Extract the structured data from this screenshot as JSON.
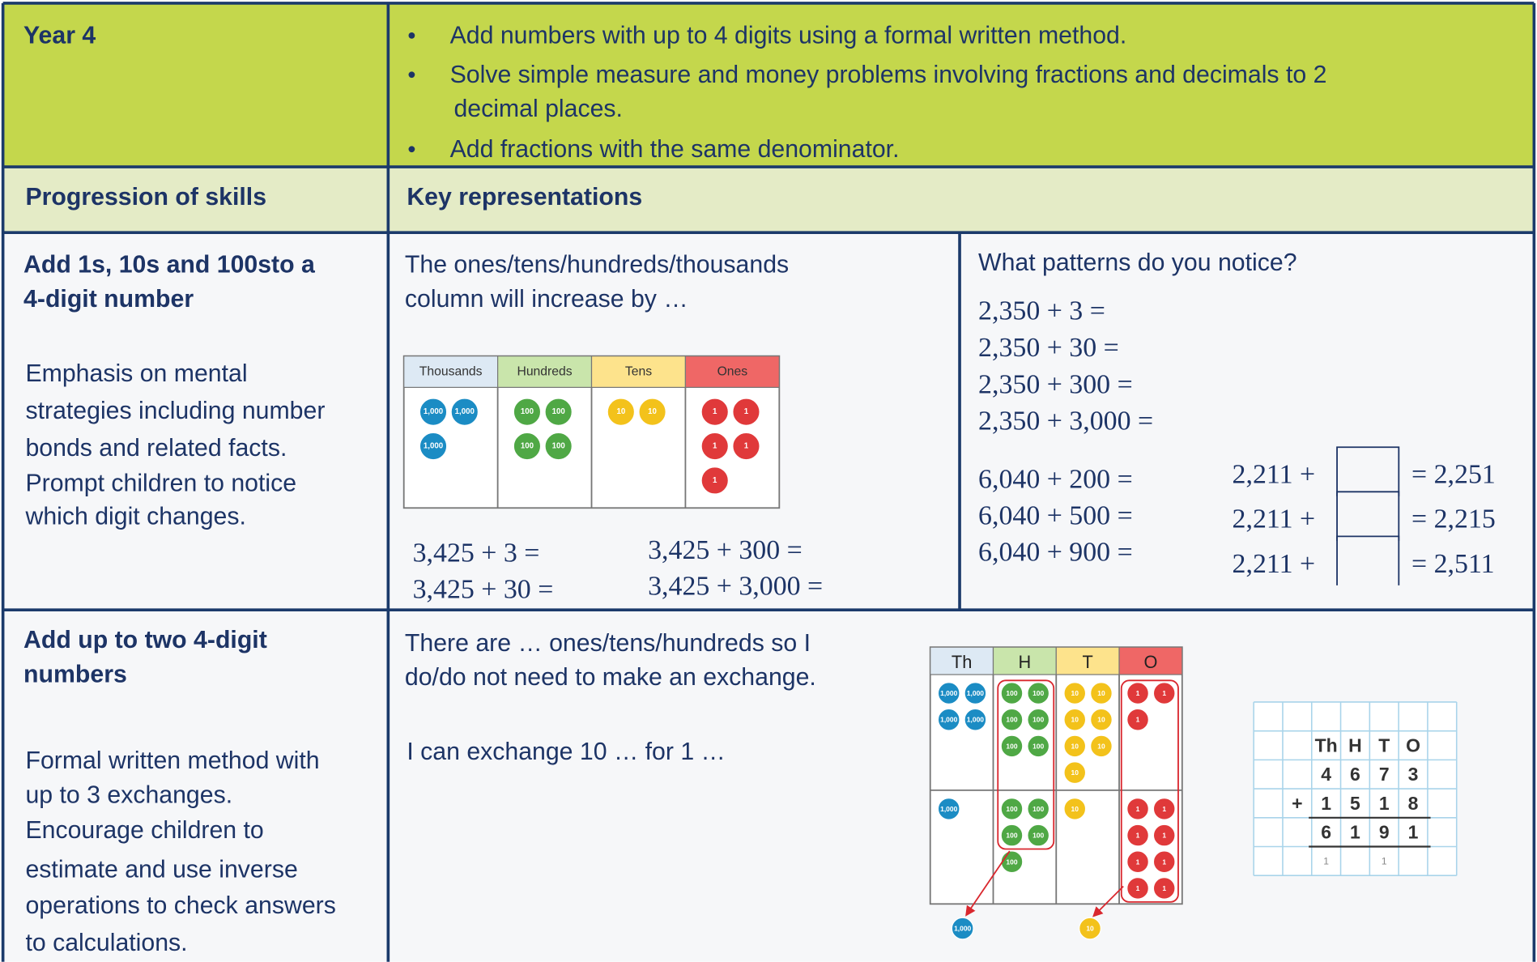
{
  "header": {
    "title": "Year 4",
    "objectives": [
      [
        "Add numbers with up to 4 digits using a formal written method."
      ],
      [
        "Solve simple measure and money problems involving fractions and decimals to 2",
        "decimal places."
      ],
      [
        "Add fractions with the same denominator."
      ]
    ]
  },
  "columns": [
    "Progression of skills",
    "Key representations"
  ],
  "rows": [
    {
      "skill": [
        "Add 1s, 10s and 100sto a",
        "4-digit number"
      ],
      "notes": [
        "Emphasis on mental",
        "strategies including number",
        "bonds and related facts.",
        "Prompt children to notice",
        "which digit changes."
      ],
      "prompt": [
        "The ones/tens/hundreds/thousands",
        "column will increase by …"
      ],
      "place_value_chart": [
        {
          "heading": "Thousands",
          "counter": "1,000",
          "count": 3
        },
        {
          "heading": "Hundreds",
          "counter": "100",
          "count": 4
        },
        {
          "heading": "Tens",
          "counter": "10",
          "count": 2
        },
        {
          "heading": "Ones",
          "counter": "1",
          "count": 5
        }
      ],
      "sums_left": [
        "3,425 + 3 =",
        "3,425 + 30 ="
      ],
      "sums_right": [
        "3,425 + 300 =",
        "3,425 + 3,000 ="
      ],
      "question": "What patterns do you notice?",
      "patterns": [
        "2,350 + 3 =",
        "2,350 + 30 =",
        "2,350 + 300 =",
        "2,350 + 3,000 ="
      ],
      "more_patterns": [
        "6,040 + 200 =",
        "6,040 + 500 =",
        "6,040 + 900 ="
      ],
      "missing": [
        {
          "left": "2,211 +",
          "right": "= 2,251"
        },
        {
          "left": "2,211 +",
          "right": "= 2,215"
        },
        {
          "left": "2,211 +",
          "right": "= 2,511"
        }
      ]
    },
    {
      "skill": [
        "Add up to two 4-digit",
        "numbers"
      ],
      "notes": [
        "Formal written method with",
        "up to 3 exchanges.",
        "Encourage children to",
        "estimate and use inverse",
        "operations to check answers",
        "to calculations."
      ],
      "prompt": [
        "There are … ones/tens/hundreds so I",
        "do/do not need to make an exchange."
      ],
      "prompt2": "I can exchange 10 … for 1 …",
      "place_value_chart": [
        {
          "heading": "Th",
          "counter": "1,000",
          "top": 4,
          "bottom": 1
        },
        {
          "heading": "H",
          "counter": "100",
          "top": 6,
          "bottom": 5
        },
        {
          "heading": "T",
          "counter": "10",
          "top": 7,
          "bottom": 1
        },
        {
          "heading": "O",
          "counter": "1",
          "top": 3,
          "bottom": 8
        }
      ],
      "exchanged": [
        "1,000",
        "10"
      ],
      "column_method": [
        [
          null,
          null,
          "Th",
          "H",
          "T",
          "O",
          null
        ],
        [
          null,
          null,
          "4",
          "6",
          "7",
          "3",
          null
        ],
        [
          null,
          "+",
          "1",
          "5",
          "1",
          "8",
          null
        ],
        [
          null,
          null,
          "6",
          "1",
          "9",
          "1",
          null
        ],
        [
          null,
          null,
          "1",
          null,
          "1",
          null,
          null
        ]
      ]
    }
  ]
}
